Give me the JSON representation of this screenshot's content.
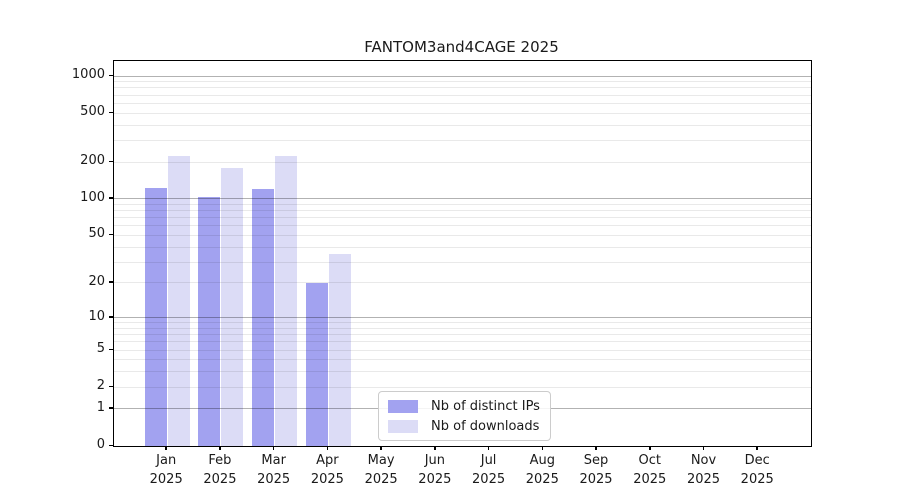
{
  "title": "FANTOM3and4CAGE 2025",
  "chart_data": {
    "type": "bar",
    "title": "FANTOM3and4CAGE 2025",
    "yscale": "log1p",
    "xlabel": "",
    "ylabel": "",
    "months": [
      "Jan",
      "Feb",
      "Mar",
      "Apr",
      "May",
      "Jun",
      "Jul",
      "Aug",
      "Sep",
      "Oct",
      "Nov",
      "Dec"
    ],
    "year": "2025",
    "series": [
      {
        "name": "Nb of distinct IPs",
        "color": "#a2a2f0",
        "values": [
          123,
          104,
          120,
          20,
          null,
          null,
          null,
          null,
          null,
          null,
          null,
          null
        ]
      },
      {
        "name": "Nb of downloads",
        "color": "#dcdcf6",
        "values": [
          226,
          180,
          226,
          35,
          null,
          null,
          null,
          null,
          null,
          null,
          null,
          null
        ]
      }
    ],
    "yticks": [
      0,
      1,
      2,
      5,
      10,
      20,
      50,
      100,
      200,
      500,
      1000
    ],
    "ylim": [
      0,
      1000
    ],
    "grid": {
      "major": [
        1,
        10,
        100,
        1000
      ],
      "minor_multipliers": [
        2,
        3,
        4,
        5,
        6,
        7,
        8,
        9
      ],
      "minor_decades": [
        1,
        10,
        100
      ]
    },
    "legend": {
      "location": "inside-bottom-center"
    }
  },
  "colors": {
    "spine": "#000000",
    "text": "#1a1a1a",
    "major_grid": "#b2b2b2",
    "minor_grid": "#e8e8e8"
  }
}
